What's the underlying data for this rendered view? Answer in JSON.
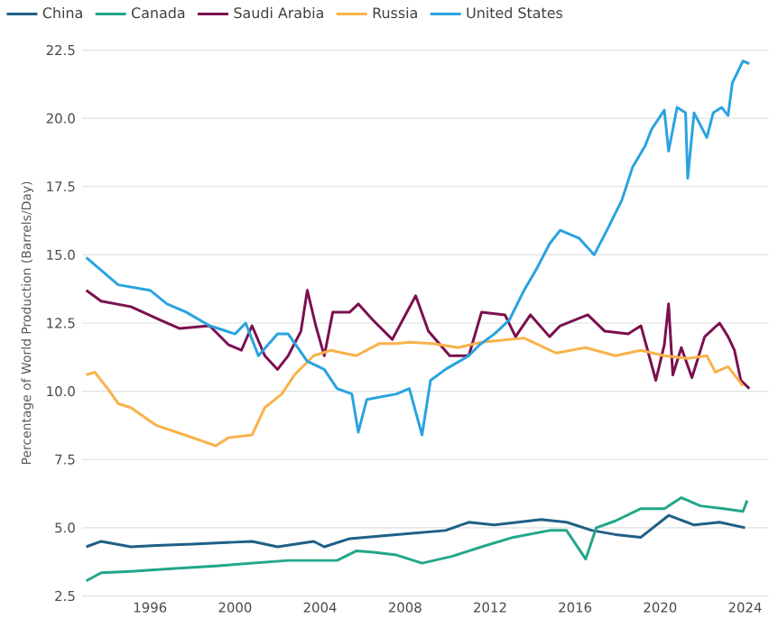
{
  "chart_data": {
    "type": "line",
    "ylabel": "Percentage of World Production (Barrels/Day)",
    "xlim": [
      1992.8,
      2025.1
    ],
    "ylim": [
      2.5,
      22.5
    ],
    "xticks": [
      1996,
      2000,
      2004,
      2008,
      2012,
      2016,
      2020,
      2024
    ],
    "yticks": [
      {
        "value": 2.5,
        "label": "2.5"
      },
      {
        "value": 5,
        "label": "5.0"
      },
      {
        "value": 7.5,
        "label": "7.5"
      },
      {
        "value": 10,
        "label": "10.0"
      },
      {
        "value": 12.5,
        "label": "12.5"
      },
      {
        "value": 15,
        "label": "15.0"
      },
      {
        "value": 17.5,
        "label": "17.5"
      },
      {
        "value": 20,
        "label": "20.0"
      },
      {
        "value": 22.5,
        "label": "22.5"
      }
    ],
    "grid": "y",
    "legend": "top",
    "marker": "none",
    "line_style": "solid",
    "series": [
      {
        "name": "China",
        "color": "#1f5f87",
        "x": [
          1993,
          1993.7,
          1995.1,
          1996.3,
          1998,
          2000.8,
          2002,
          2003.7,
          2004.2,
          2005.4,
          2007.6,
          2009.9,
          2011,
          2012.2,
          2014.4,
          2015.6,
          2016.8,
          2017.9,
          2019.1,
          2020.4,
          2021.6,
          2022.8,
          2024
        ],
        "values": [
          4.3,
          4.5,
          4.3,
          4.35,
          4.4,
          4.5,
          4.3,
          4.5,
          4.3,
          4.6,
          4.75,
          4.9,
          5.2,
          5.1,
          5.3,
          5.2,
          4.9,
          4.75,
          4.65,
          5.45,
          5.1,
          5.2,
          5.0
        ]
      },
      {
        "name": "Canada",
        "color": "#23a68a",
        "x": [
          1993,
          1993.7,
          1995.1,
          1997,
          1999.1,
          2000.8,
          2002.5,
          2003.7,
          2004.8,
          2005.7,
          2006.5,
          2007.6,
          2008.8,
          2010.2,
          2011.6,
          2013.1,
          2014.8,
          2015.6,
          2016.5,
          2017,
          2017.9,
          2019.1,
          2020.2,
          2021,
          2021.9,
          2023,
          2023.9,
          2024.1
        ],
        "values": [
          3.05,
          3.35,
          3.4,
          3.5,
          3.6,
          3.7,
          3.8,
          3.8,
          3.8,
          4.15,
          4.1,
          4.0,
          3.7,
          3.95,
          4.3,
          4.65,
          4.9,
          4.9,
          3.85,
          5.0,
          5.25,
          5.7,
          5.7,
          6.1,
          5.8,
          5.7,
          5.6,
          6.0
        ]
      },
      {
        "name": "Saudi Arabia",
        "color": "#7b1050",
        "x": [
          1993,
          1993.7,
          1995.1,
          1996.5,
          1997.4,
          1998.8,
          1999.7,
          2000.3,
          2000.8,
          2001.4,
          2002,
          2002.5,
          2003.1,
          2003.4,
          2003.8,
          2004.2,
          2004.6,
          2005.4,
          2005.8,
          2006.5,
          2007.4,
          2008.5,
          2009.1,
          2010.1,
          2011,
          2011.6,
          2012.7,
          2013.2,
          2013.9,
          2014.8,
          2015.3,
          2016.6,
          2017.4,
          2018.5,
          2019.1,
          2019.8,
          2020.2,
          2020.4,
          2020.6,
          2021,
          2021.5,
          2022.1,
          2022.8,
          2023.2,
          2023.5,
          2023.8,
          2024.2
        ],
        "values": [
          13.7,
          13.3,
          13.1,
          12.6,
          12.3,
          12.4,
          11.7,
          11.5,
          12.4,
          11.3,
          10.8,
          11.3,
          12.2,
          13.7,
          12.4,
          11.3,
          12.9,
          12.9,
          13.2,
          12.6,
          11.9,
          13.5,
          12.2,
          11.3,
          11.3,
          12.9,
          12.8,
          12.0,
          12.8,
          12.0,
          12.4,
          12.8,
          12.2,
          12.1,
          12.4,
          10.4,
          11.7,
          13.2,
          10.6,
          11.6,
          10.5,
          12.0,
          12.5,
          12.0,
          11.5,
          10.4,
          10.1
        ]
      },
      {
        "name": "Russia",
        "color": "#f9b24a",
        "x": [
          1993,
          1993.4,
          1994.1,
          1994.5,
          1995.1,
          1996.3,
          1998,
          1999.1,
          1999.7,
          2000.8,
          2001.4,
          2002.2,
          2002.8,
          2003.7,
          2004.5,
          2005.7,
          2006.8,
          2007.6,
          2008.2,
          2009.3,
          2010.5,
          2011.6,
          2013.6,
          2015.1,
          2016.5,
          2017.9,
          2019.1,
          2020.2,
          2021.3,
          2022.2,
          2022.6,
          2023.2,
          2023.9
        ],
        "values": [
          10.6,
          10.7,
          10.0,
          9.55,
          9.4,
          8.75,
          8.3,
          8.0,
          8.3,
          8.4,
          9.4,
          9.9,
          10.6,
          11.3,
          11.5,
          11.3,
          11.75,
          11.75,
          11.8,
          11.75,
          11.6,
          11.8,
          11.95,
          11.4,
          11.6,
          11.3,
          11.5,
          11.3,
          11.2,
          11.3,
          10.7,
          10.9,
          10.2
        ]
      },
      {
        "name": "United States",
        "color": "#29a3e0",
        "x": [
          1993,
          1994.5,
          1996,
          1996.8,
          1997.7,
          1998.8,
          2000,
          2000.5,
          2001.1,
          2002,
          2002.5,
          2003.4,
          2004.2,
          2004.8,
          2005.5,
          2005.8,
          2006.2,
          2007.6,
          2008.2,
          2008.8,
          2009.2,
          2009.9,
          2011,
          2011.5,
          2012.2,
          2012.9,
          2013.6,
          2014.2,
          2014.8,
          2015.3,
          2016.2,
          2016.9,
          2017.5,
          2018.2,
          2018.7,
          2019.3,
          2019.6,
          2020.2,
          2020.4,
          2020.8,
          2021.2,
          2021.3,
          2021.6,
          2022.2,
          2022.5,
          2022.9,
          2023.2,
          2023.4,
          2023.9,
          2024.2
        ],
        "values": [
          14.9,
          13.9,
          13.7,
          13.2,
          12.9,
          12.4,
          12.1,
          12.5,
          11.3,
          12.1,
          12.1,
          11.1,
          10.8,
          10.1,
          9.9,
          8.5,
          9.7,
          9.9,
          10.1,
          8.4,
          10.4,
          10.8,
          11.3,
          11.7,
          12.1,
          12.6,
          13.7,
          14.5,
          15.4,
          15.9,
          15.6,
          15.0,
          15.9,
          17.0,
          18.2,
          19.0,
          19.6,
          20.3,
          18.8,
          20.4,
          20.2,
          17.8,
          20.2,
          19.3,
          20.2,
          20.4,
          20.1,
          21.3,
          22.1,
          22.0
        ]
      }
    ]
  }
}
